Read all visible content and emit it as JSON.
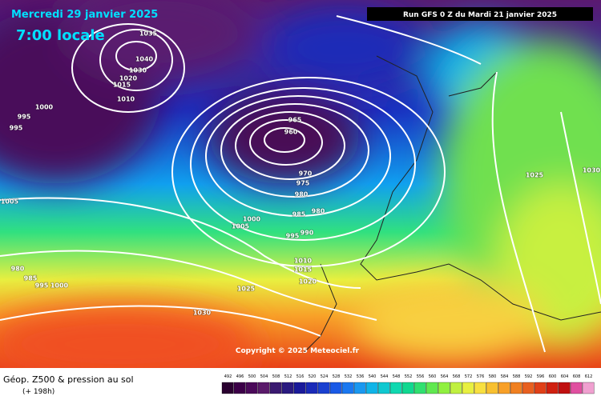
{
  "header": {
    "date": "Mercredi 29 janvier 2025",
    "time": "7:00 locale",
    "run": "Run GFS 0 Z du Mardi 21 janvier 2025"
  },
  "copyright": "Copyright © 2025 Meteociel.fr",
  "footer": {
    "title": "Géop. Z500 & pression au sol",
    "lead": "(+ 198h)"
  },
  "isobars": [
    1035,
    1040,
    1030,
    1020,
    1015,
    1010,
    1000,
    995,
    995,
    1005,
    965,
    960,
    970,
    975,
    980,
    980,
    985,
    990,
    995,
    1000,
    1005,
    1010,
    1015,
    1020,
    1025,
    1030,
    1025,
    1030,
    980,
    985,
    995,
    1000
  ],
  "colorbar": {
    "values": [
      492,
      496,
      500,
      504,
      508,
      512,
      516,
      520,
      524,
      528,
      532,
      536,
      540,
      544,
      548,
      552,
      556,
      560,
      564,
      568,
      572,
      576,
      580,
      584,
      588,
      592,
      596,
      600,
      604,
      608,
      612
    ],
    "colors": [
      "#2a0030",
      "#3c0048",
      "#4b0a5a",
      "#5a1a6a",
      "#3a1a70",
      "#2a1a80",
      "#1a1a9a",
      "#1a2ab8",
      "#1a40d0",
      "#1a5ae6",
      "#1a78f0",
      "#1a98f0",
      "#10b4e8",
      "#10c8d0",
      "#10d8b0",
      "#10d890",
      "#30e070",
      "#60e850",
      "#90f040",
      "#c0f040",
      "#e8f040",
      "#f8e040",
      "#f8c030",
      "#f8a028",
      "#f08020",
      "#e86020",
      "#e04018",
      "#d02010",
      "#c01010",
      "#e050a0",
      "#f0a0d0"
    ]
  }
}
